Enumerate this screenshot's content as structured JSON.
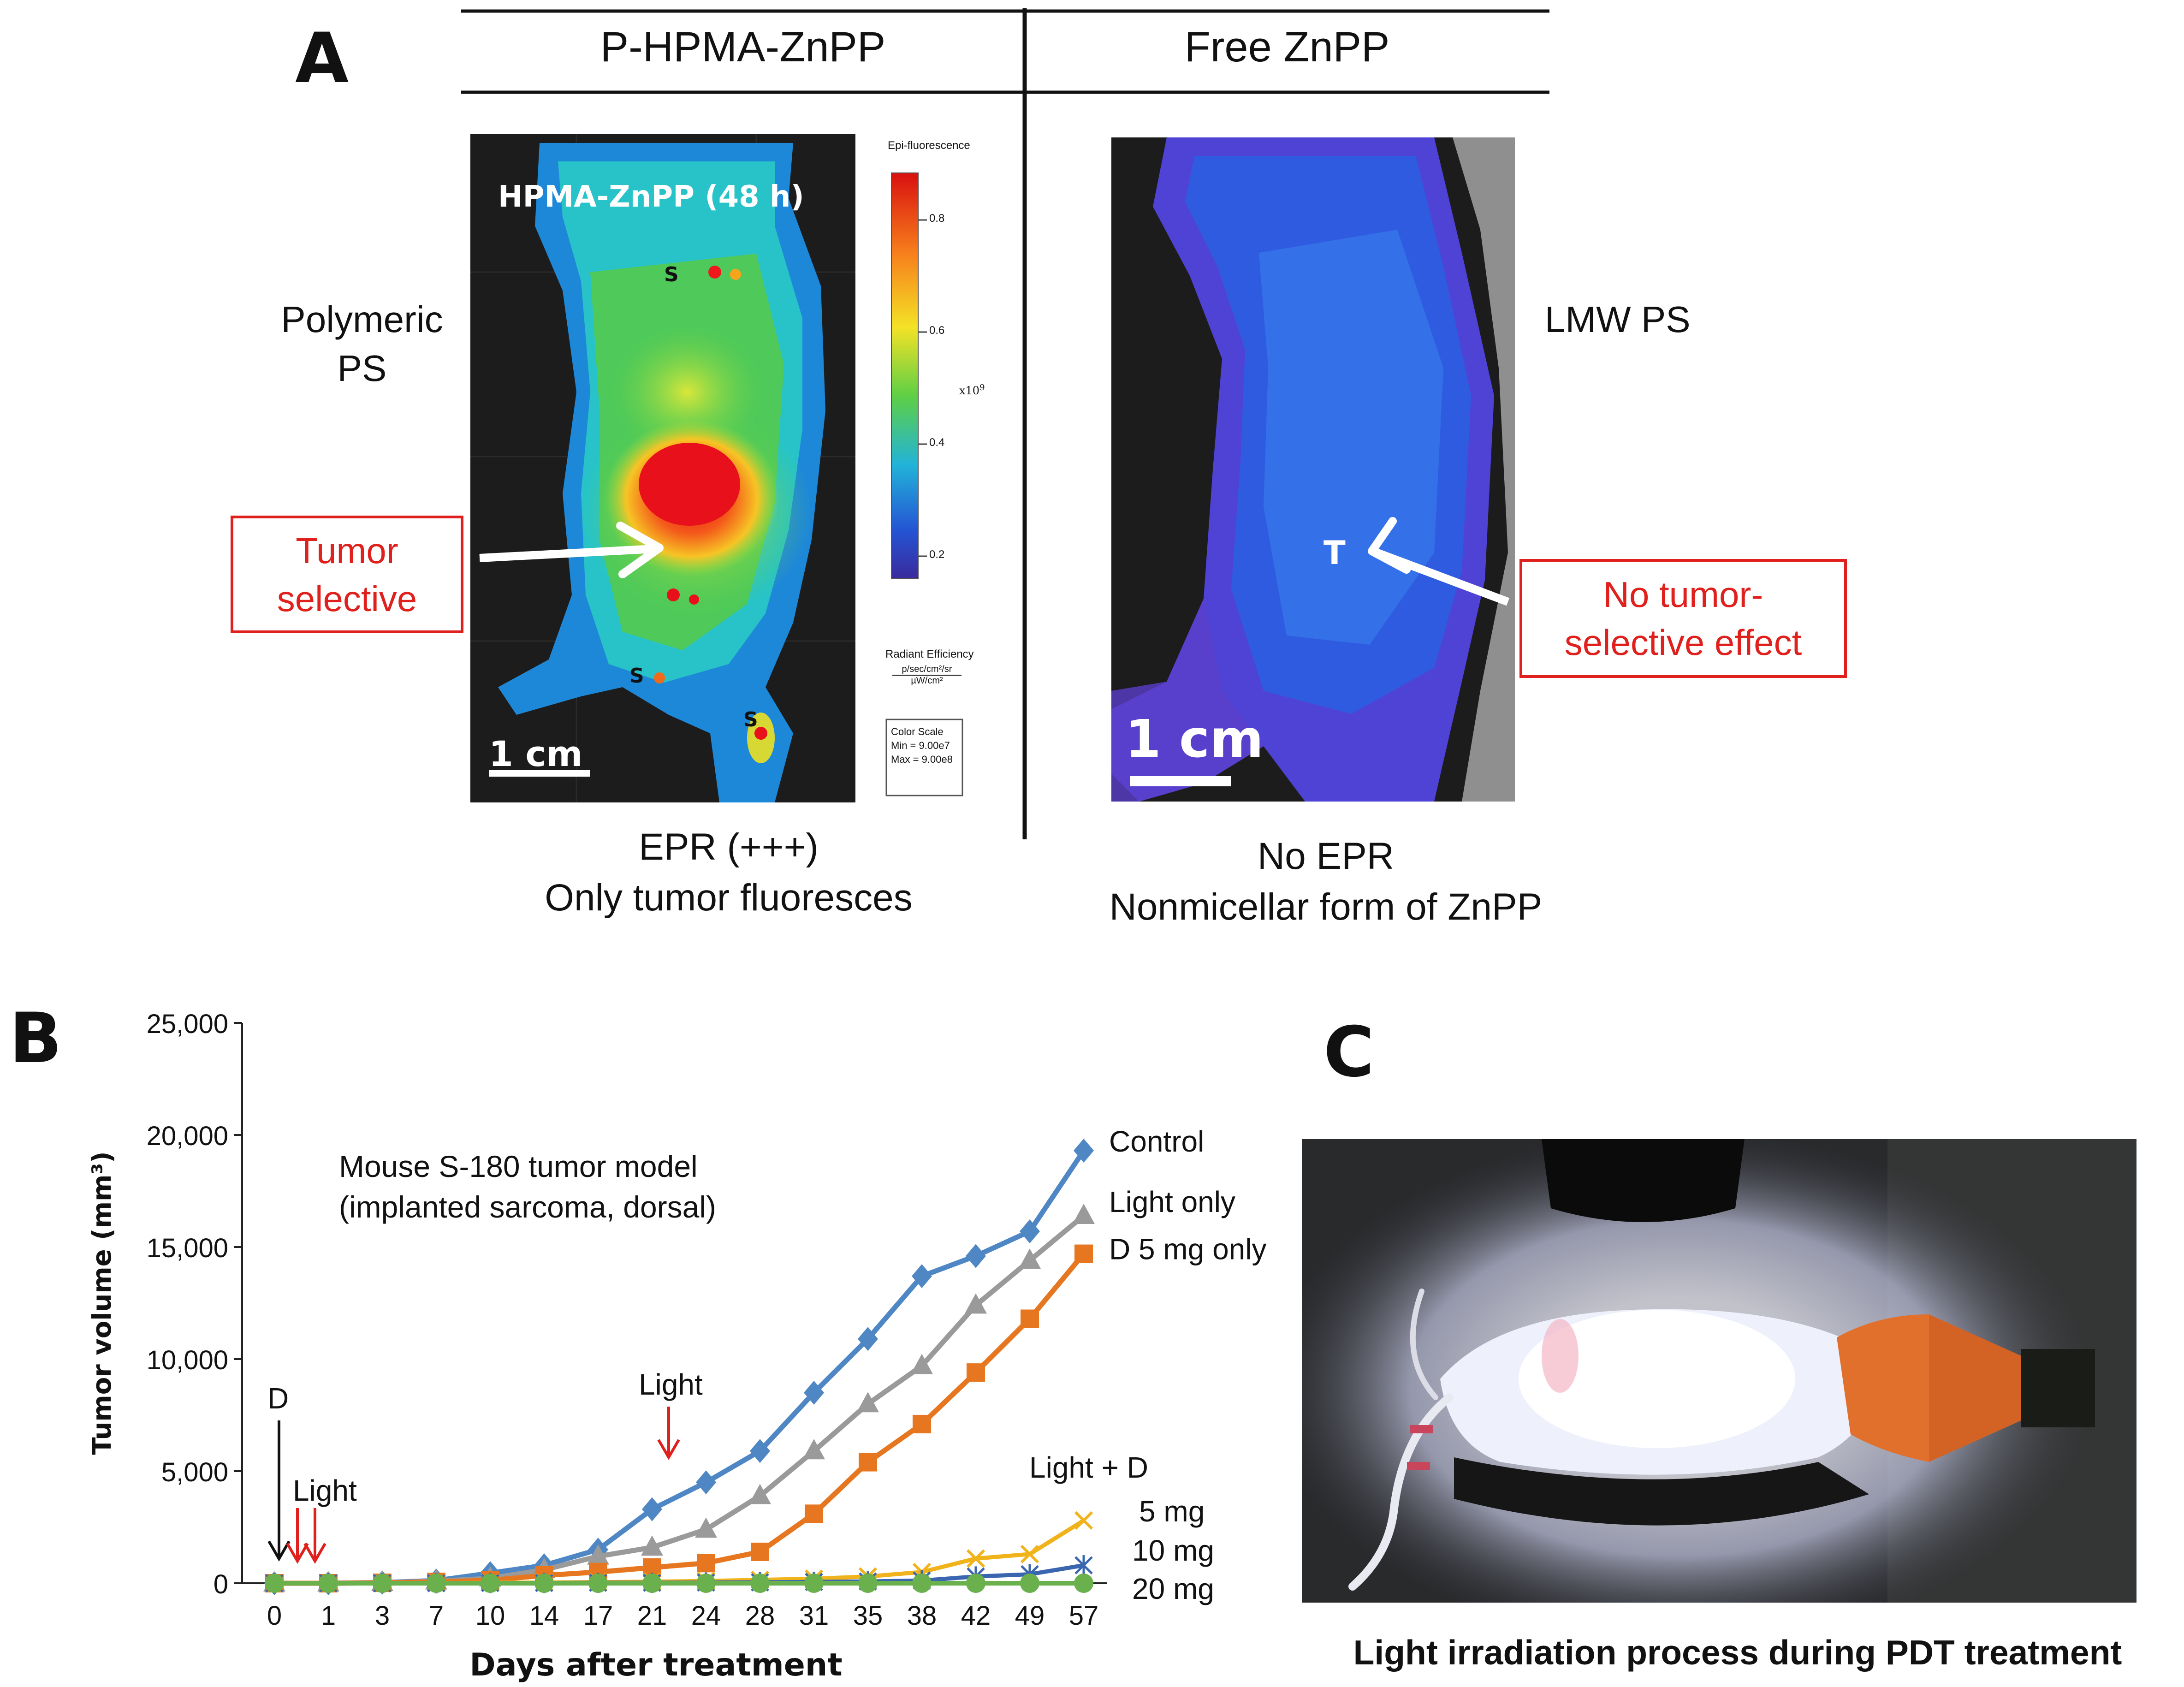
{
  "panel_a": {
    "letter": "A",
    "col_left_header": "P-HPMA-ZnPP",
    "col_right_header": "Free ZnPP",
    "left_side_label": [
      "Polymeric",
      "PS"
    ],
    "right_side_label": "LMW PS",
    "left_image": {
      "title": "HPMA-ZnPP (48 h)",
      "spot_label": "S",
      "scale_bar": "1 cm",
      "legend": {
        "title": "Epi-fluorescence",
        "ticks": [
          "0.8",
          "0.6",
          "0.4",
          "0.2"
        ],
        "exponent": "x10",
        "exponent_power": "9",
        "unit_title": "Radiant Efficiency",
        "unit_num": "p/sec/cm²/sr",
        "unit_den": "µW/cm²",
        "color_scale_title": "Color Scale",
        "color_scale_min": "Min = 9.00e7",
        "color_scale_max": "Max = 9.00e8"
      }
    },
    "right_image": {
      "tumor_label": "T",
      "scale_bar": "1 cm"
    },
    "left_callout": [
      "Tumor",
      "selective"
    ],
    "right_callout": [
      "No tumor-",
      "selective effect"
    ],
    "left_caption": [
      "EPR (+++)",
      "Only tumor fluoresces"
    ],
    "right_caption": [
      "No EPR",
      "Nonmicellar form of ZnPP"
    ]
  },
  "panel_b": {
    "letter": "B",
    "annotation": [
      "Mouse S-180 tumor model",
      "(implanted sarcoma, dorsal)"
    ],
    "arrow_d_label": "D",
    "arrow_light_early_label": "Light",
    "arrow_light_mid_label": "Light",
    "light_d_label": "Light + D",
    "dose_labels": [
      "5 mg",
      "10 mg",
      "20 mg"
    ],
    "colors": {
      "control": "#4f87c4",
      "light_only": "#9a9a9a",
      "d5_only": "#e6761f",
      "ld5": "#f0b31c",
      "ld10": "#3a66b0",
      "ld20": "#6ab04c",
      "arrow_red": "#e0201c"
    }
  },
  "chart_data": {
    "type": "line",
    "xlabel": "Days after treatment",
    "ylabel": "Tumor volume (mm³)",
    "x": [
      "0",
      "1",
      "3",
      "7",
      "10",
      "14",
      "17",
      "21",
      "24",
      "28",
      "31",
      "35",
      "38",
      "42",
      "49",
      "57"
    ],
    "ylim": [
      0,
      25000
    ],
    "yticks": [
      "0",
      "5,000",
      "10,000",
      "15,000",
      "20,000",
      "25,000"
    ],
    "series": [
      {
        "name": "Control",
        "marker": "diamond",
        "values": [
          0,
          0,
          30,
          120,
          450,
          800,
          1500,
          3300,
          4500,
          5900,
          8500,
          10900,
          13700,
          14600,
          15700,
          19300
        ]
      },
      {
        "name": "Light only",
        "marker": "triangle",
        "values": [
          0,
          0,
          20,
          90,
          220,
          600,
          1200,
          1600,
          2400,
          3900,
          5900,
          8000,
          9700,
          12400,
          14400,
          16400
        ]
      },
      {
        "name": "D 5 mg only",
        "marker": "square",
        "values": [
          0,
          0,
          20,
          60,
          130,
          350,
          500,
          700,
          900,
          1400,
          3100,
          5400,
          7100,
          9400,
          11800,
          14700
        ]
      },
      {
        "name": "5 mg",
        "marker": "x",
        "values": [
          0,
          0,
          0,
          10,
          20,
          30,
          50,
          70,
          100,
          150,
          200,
          300,
          500,
          1100,
          1300,
          2800
        ]
      },
      {
        "name": "10 mg",
        "marker": "star",
        "values": [
          0,
          0,
          0,
          0,
          10,
          10,
          20,
          20,
          30,
          40,
          60,
          80,
          120,
          300,
          400,
          800
        ]
      },
      {
        "name": "20 mg",
        "marker": "circle",
        "values": [
          0,
          0,
          0,
          0,
          0,
          0,
          0,
          0,
          0,
          0,
          0,
          0,
          0,
          0,
          0,
          0
        ]
      }
    ]
  },
  "panel_c": {
    "letter": "C",
    "caption": "Light irradiation process during PDT treatment"
  }
}
